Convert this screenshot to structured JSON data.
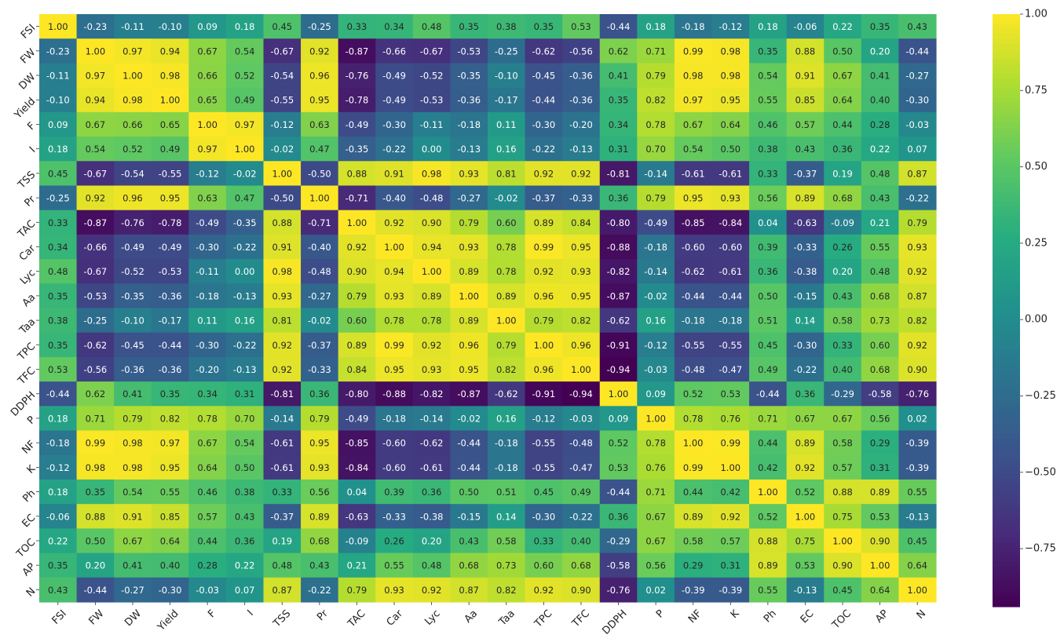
{
  "chart_data": {
    "type": "heatmap",
    "title": "",
    "xlabel": "",
    "ylabel": "",
    "colormap": "viridis",
    "annotate": true,
    "value_range": [
      -0.94,
      1.0
    ],
    "labels": [
      "FSI",
      "FW",
      "DW",
      "Yield",
      "F",
      "I",
      "TSS",
      "Pr",
      "TAC",
      "Car",
      "Lyc",
      "Aa",
      "Taa",
      "TPC",
      "TFC",
      "DDPH",
      "P",
      "NF",
      "K",
      "Ph",
      "EC",
      "TOC",
      "AP",
      "N"
    ],
    "matrix": [
      [
        1.0,
        -0.23,
        -0.11,
        -0.1,
        0.09,
        0.18,
        0.45,
        -0.25,
        0.33,
        0.34,
        0.48,
        0.35,
        0.38,
        0.35,
        0.53,
        -0.44,
        0.18,
        -0.18,
        -0.12,
        0.18,
        -0.06,
        0.22,
        0.35,
        0.43
      ],
      [
        -0.23,
        1.0,
        0.97,
        0.94,
        0.67,
        0.54,
        -0.67,
        0.92,
        -0.87,
        -0.66,
        -0.67,
        -0.53,
        -0.25,
        -0.62,
        -0.56,
        0.62,
        0.71,
        0.99,
        0.98,
        0.35,
        0.88,
        0.5,
        0.2,
        -0.44
      ],
      [
        -0.11,
        0.97,
        1.0,
        0.98,
        0.66,
        0.52,
        -0.54,
        0.96,
        -0.76,
        -0.49,
        -0.52,
        -0.35,
        -0.1,
        -0.45,
        -0.36,
        0.41,
        0.79,
        0.98,
        0.98,
        0.54,
        0.91,
        0.67,
        0.41,
        -0.27
      ],
      [
        -0.1,
        0.94,
        0.98,
        1.0,
        0.65,
        0.49,
        -0.55,
        0.95,
        -0.78,
        -0.49,
        -0.53,
        -0.36,
        -0.17,
        -0.44,
        -0.36,
        0.35,
        0.82,
        0.97,
        0.95,
        0.55,
        0.85,
        0.64,
        0.4,
        -0.3
      ],
      [
        0.09,
        0.67,
        0.66,
        0.65,
        1.0,
        0.97,
        -0.12,
        0.63,
        -0.49,
        -0.3,
        -0.11,
        -0.18,
        0.11,
        -0.3,
        -0.2,
        0.34,
        0.78,
        0.67,
        0.64,
        0.46,
        0.57,
        0.44,
        0.28,
        -0.03
      ],
      [
        0.18,
        0.54,
        0.52,
        0.49,
        0.97,
        1.0,
        -0.02,
        0.47,
        -0.35,
        -0.22,
        0.0,
        -0.13,
        0.16,
        -0.22,
        -0.13,
        0.31,
        0.7,
        0.54,
        0.5,
        0.38,
        0.43,
        0.36,
        0.22,
        0.07
      ],
      [
        0.45,
        -0.67,
        -0.54,
        -0.55,
        -0.12,
        -0.02,
        1.0,
        -0.5,
        0.88,
        0.91,
        0.98,
        0.93,
        0.81,
        0.92,
        0.92,
        -0.81,
        -0.14,
        -0.61,
        -0.61,
        0.33,
        -0.37,
        0.19,
        0.48,
        0.87
      ],
      [
        -0.25,
        0.92,
        0.96,
        0.95,
        0.63,
        0.47,
        -0.5,
        1.0,
        -0.71,
        -0.4,
        -0.48,
        -0.27,
        -0.02,
        -0.37,
        -0.33,
        0.36,
        0.79,
        0.95,
        0.93,
        0.56,
        0.89,
        0.68,
        0.43,
        -0.22
      ],
      [
        0.33,
        -0.87,
        -0.76,
        -0.78,
        -0.49,
        -0.35,
        0.88,
        -0.71,
        1.0,
        0.92,
        0.9,
        0.79,
        0.6,
        0.89,
        0.84,
        -0.8,
        -0.49,
        -0.85,
        -0.84,
        0.04,
        -0.63,
        -0.09,
        0.21,
        0.79
      ],
      [
        0.34,
        -0.66,
        -0.49,
        -0.49,
        -0.3,
        -0.22,
        0.91,
        -0.4,
        0.92,
        1.0,
        0.94,
        0.93,
        0.78,
        0.99,
        0.95,
        -0.88,
        -0.18,
        -0.6,
        -0.6,
        0.39,
        -0.33,
        0.26,
        0.55,
        0.93
      ],
      [
        0.48,
        -0.67,
        -0.52,
        -0.53,
        -0.11,
        0.0,
        0.98,
        -0.48,
        0.9,
        0.94,
        1.0,
        0.89,
        0.78,
        0.92,
        0.93,
        -0.82,
        -0.14,
        -0.62,
        -0.61,
        0.36,
        -0.38,
        0.2,
        0.48,
        0.92
      ],
      [
        0.35,
        -0.53,
        -0.35,
        -0.36,
        -0.18,
        -0.13,
        0.93,
        -0.27,
        0.79,
        0.93,
        0.89,
        1.0,
        0.89,
        0.96,
        0.95,
        -0.87,
        -0.02,
        -0.44,
        -0.44,
        0.5,
        -0.15,
        0.43,
        0.68,
        0.87
      ],
      [
        0.38,
        -0.25,
        -0.1,
        -0.17,
        0.11,
        0.16,
        0.81,
        -0.02,
        0.6,
        0.78,
        0.78,
        0.89,
        1.0,
        0.79,
        0.82,
        -0.62,
        0.16,
        -0.18,
        -0.18,
        0.51,
        0.14,
        0.58,
        0.73,
        0.82
      ],
      [
        0.35,
        -0.62,
        -0.45,
        -0.44,
        -0.3,
        -0.22,
        0.92,
        -0.37,
        0.89,
        0.99,
        0.92,
        0.96,
        0.79,
        1.0,
        0.96,
        -0.91,
        -0.12,
        -0.55,
        -0.55,
        0.45,
        -0.3,
        0.33,
        0.6,
        0.92
      ],
      [
        0.53,
        -0.56,
        -0.36,
        -0.36,
        -0.2,
        -0.13,
        0.92,
        -0.33,
        0.84,
        0.95,
        0.93,
        0.95,
        0.82,
        0.96,
        1.0,
        -0.94,
        -0.03,
        -0.48,
        -0.47,
        0.49,
        -0.22,
        0.4,
        0.68,
        0.9
      ],
      [
        -0.44,
        0.62,
        0.41,
        0.35,
        0.34,
        0.31,
        -0.81,
        0.36,
        -0.8,
        -0.88,
        -0.82,
        -0.87,
        -0.62,
        -0.91,
        -0.94,
        1.0,
        0.09,
        0.52,
        0.53,
        -0.44,
        0.36,
        -0.29,
        -0.58,
        -0.76
      ],
      [
        0.18,
        0.71,
        0.79,
        0.82,
        0.78,
        0.7,
        -0.14,
        0.79,
        -0.49,
        -0.18,
        -0.14,
        -0.02,
        0.16,
        -0.12,
        -0.03,
        0.09,
        1.0,
        0.78,
        0.76,
        0.71,
        0.67,
        0.67,
        0.56,
        0.02
      ],
      [
        -0.18,
        0.99,
        0.98,
        0.97,
        0.67,
        0.54,
        -0.61,
        0.95,
        -0.85,
        -0.6,
        -0.62,
        -0.44,
        -0.18,
        -0.55,
        -0.48,
        0.52,
        0.78,
        1.0,
        0.99,
        0.44,
        0.89,
        0.58,
        0.29,
        -0.39
      ],
      [
        -0.12,
        0.98,
        0.98,
        0.95,
        0.64,
        0.5,
        -0.61,
        0.93,
        -0.84,
        -0.6,
        -0.61,
        -0.44,
        -0.18,
        -0.55,
        -0.47,
        0.53,
        0.76,
        0.99,
        1.0,
        0.42,
        0.92,
        0.57,
        0.31,
        -0.39
      ],
      [
        0.18,
        0.35,
        0.54,
        0.55,
        0.46,
        0.38,
        0.33,
        0.56,
        0.04,
        0.39,
        0.36,
        0.5,
        0.51,
        0.45,
        0.49,
        -0.44,
        0.71,
        0.44,
        0.42,
        1.0,
        0.52,
        0.88,
        0.89,
        0.55
      ],
      [
        -0.06,
        0.88,
        0.91,
        0.85,
        0.57,
        0.43,
        -0.37,
        0.89,
        -0.63,
        -0.33,
        -0.38,
        -0.15,
        0.14,
        -0.3,
        -0.22,
        0.36,
        0.67,
        0.89,
        0.92,
        0.52,
        1.0,
        0.75,
        0.53,
        -0.13
      ],
      [
        0.22,
        0.5,
        0.67,
        0.64,
        0.44,
        0.36,
        0.19,
        0.68,
        -0.09,
        0.26,
        0.2,
        0.43,
        0.58,
        0.33,
        0.4,
        -0.29,
        0.67,
        0.58,
        0.57,
        0.88,
        0.75,
        1.0,
        0.9,
        0.45
      ],
      [
        0.35,
        0.2,
        0.41,
        0.4,
        0.28,
        0.22,
        0.48,
        0.43,
        0.21,
        0.55,
        0.48,
        0.68,
        0.73,
        0.6,
        0.68,
        -0.58,
        0.56,
        0.29,
        0.31,
        0.89,
        0.53,
        0.9,
        1.0,
        0.64
      ],
      [
        0.43,
        -0.44,
        -0.27,
        -0.3,
        -0.03,
        0.07,
        0.87,
        -0.22,
        0.79,
        0.93,
        0.92,
        0.87,
        0.82,
        0.92,
        0.9,
        -0.76,
        0.02,
        -0.39,
        -0.39,
        0.55,
        -0.13,
        0.45,
        0.64,
        1.0
      ]
    ],
    "colorbar": {
      "ticks": [
        1.0,
        0.75,
        0.5,
        0.25,
        0.0,
        -0.25,
        -0.5,
        -0.75
      ],
      "tick_labels": [
        "1.00",
        "0.75",
        "0.50",
        "0.25",
        "0.00",
        "−0.25",
        "−0.50",
        "−0.75"
      ]
    }
  }
}
